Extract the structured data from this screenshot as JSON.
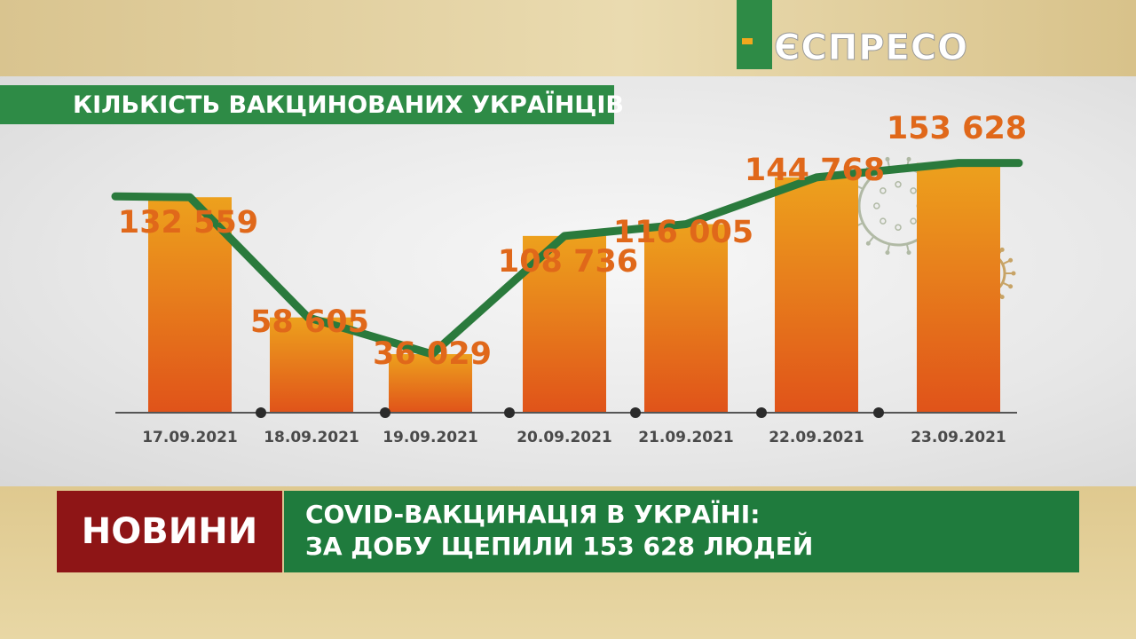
{
  "brand": {
    "logo_text": "ЄСПРЕСО",
    "color_green": "#2e8b46",
    "color_accent": "#f2a81d"
  },
  "chart_data": {
    "type": "bar",
    "title": "КІЛЬКІСТЬ ВАКЦИНОВАНИХ УКРАЇНЦІВ",
    "categories": [
      "17.09.2021",
      "18.09.2021",
      "19.09.2021",
      "20.09.2021",
      "21.09.2021",
      "22.09.2021",
      "23.09.2021"
    ],
    "values": [
      132559,
      58605,
      36029,
      108736,
      116005,
      144768,
      153628
    ],
    "value_labels": [
      "132 559",
      "58 605",
      "36 029",
      "108 736",
      "116 005",
      "144 768",
      "153 628"
    ],
    "ylim": [
      0,
      160000
    ],
    "grid": false,
    "overlay_line": true,
    "colors": {
      "bar": "#e26a1a",
      "line": "#2a7a3c",
      "label": "#e0681a",
      "axis": "#555555"
    }
  },
  "news": {
    "label": "НОВИНИ",
    "headline_line1": "COVID-ВАКЦИНАЦІЯ В УКРАЇНІ:",
    "headline_line2": "ЗА ДОБУ ЩЕПИЛИ 153 628 ЛЮДЕЙ",
    "label_color": "#8e1516",
    "headline_color": "#1f7b3d"
  }
}
